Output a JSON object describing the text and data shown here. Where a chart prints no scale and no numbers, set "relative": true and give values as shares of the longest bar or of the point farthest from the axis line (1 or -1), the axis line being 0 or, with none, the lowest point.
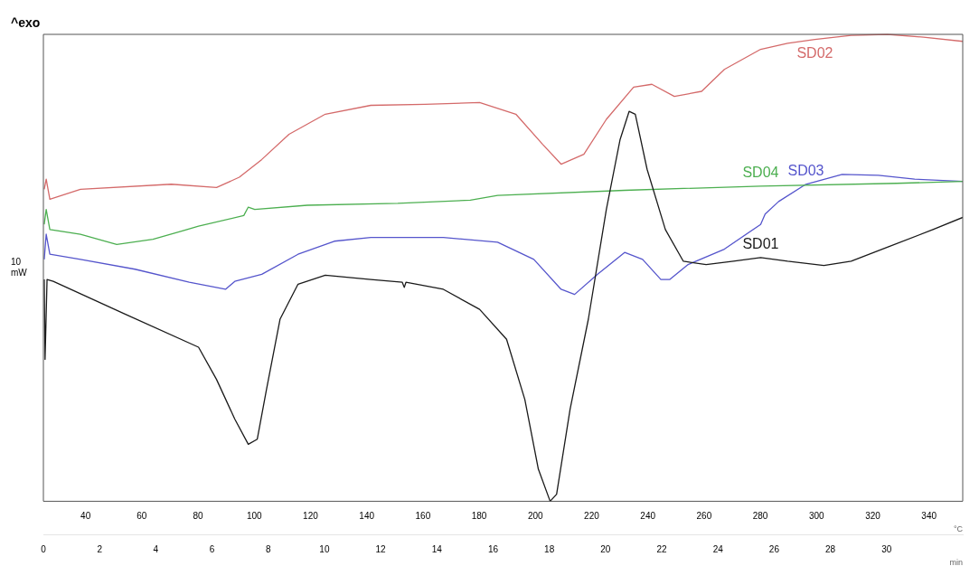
{
  "chart_data": {
    "type": "line",
    "relative": true,
    "xlabel": "min",
    "x2label": "°C",
    "xlim": [
      0,
      32.71
    ],
    "xticks": [
      0,
      2,
      4,
      6,
      8,
      10,
      12,
      14,
      16,
      18,
      20,
      22,
      24,
      26,
      28,
      30
    ],
    "x2lim": [
      25,
      352
    ],
    "x2ticks": [
      40,
      60,
      80,
      100,
      120,
      140,
      160,
      180,
      200,
      220,
      240,
      260,
      280,
      300,
      320,
      340
    ],
    "grid": false,
    "legend": false,
    "marker": "none",
    "line_style": "solid",
    "annotations": [
      "^exo",
      "10 mW"
    ],
    "series": [
      {
        "name": "SD01",
        "color": "#1a1a1a",
        "x": [
          0.03,
          0.06,
          0.13,
          0.35,
          2.94,
          5.52,
          6.16,
          6.81,
          7.29,
          7.61,
          7.94,
          8.42,
          9.06,
          10.03,
          11.65,
          12.77,
          12.84,
          12.9,
          14.23,
          15.52,
          16.48,
          17.13,
          17.61,
          18.03,
          18.26,
          18.74,
          19.39,
          20.03,
          20.52,
          20.84,
          21.06,
          21.48,
          22.13,
          22.77,
          23.58,
          24.55,
          25.52,
          26.48,
          27.77,
          28.74,
          30.03,
          31.65,
          32.71
        ],
        "values": [
          0.475,
          0.304,
          0.475,
          0.471,
          0.4,
          0.33,
          0.261,
          0.176,
          0.122,
          0.133,
          0.24,
          0.39,
          0.465,
          0.484,
          0.475,
          0.469,
          0.458,
          0.469,
          0.454,
          0.411,
          0.347,
          0.218,
          0.069,
          0,
          0.015,
          0.197,
          0.39,
          0.625,
          0.775,
          0.835,
          0.829,
          0.711,
          0.582,
          0.514,
          0.507,
          0.514,
          0.522,
          0.514,
          0.505,
          0.514,
          0.544,
          0.582,
          0.608
        ]
      },
      {
        "name": "SD02",
        "color": "#d46a6a",
        "x": [
          0.03,
          0.1,
          0.23,
          1.32,
          4.55,
          6.16,
          6.97,
          7.77,
          8.74,
          10.03,
          11.65,
          13.58,
          15.52,
          16.81,
          17.77,
          18.42,
          19.23,
          20.03,
          21.0,
          21.65,
          22.45,
          23.42,
          24.23,
          25.52,
          26.48,
          27.45,
          28.74,
          30.03,
          31.32,
          32.71
        ],
        "values": [
          0.668,
          0.69,
          0.647,
          0.668,
          0.679,
          0.672,
          0.694,
          0.732,
          0.786,
          0.829,
          0.848,
          0.85,
          0.854,
          0.829,
          0.764,
          0.722,
          0.743,
          0.818,
          0.887,
          0.893,
          0.867,
          0.878,
          0.925,
          0.968,
          0.981,
          0.989,
          0.998,
          1.0,
          0.994,
          0.985
        ]
      },
      {
        "name": "SD04",
        "color": "#4caf50",
        "x": [
          0.03,
          0.1,
          0.23,
          1.32,
          2.61,
          3.9,
          5.52,
          7.13,
          7.29,
          7.52,
          9.39,
          12.61,
          15.19,
          16.16,
          20.68,
          25.52,
          30.35,
          32.71
        ],
        "values": [
          0.593,
          0.625,
          0.582,
          0.572,
          0.55,
          0.561,
          0.589,
          0.612,
          0.63,
          0.625,
          0.634,
          0.638,
          0.645,
          0.655,
          0.666,
          0.675,
          0.681,
          0.685
        ]
      },
      {
        "name": "SD03",
        "color": "#5555cc",
        "x": [
          0.03,
          0.1,
          0.23,
          1.32,
          3.26,
          5.19,
          6.48,
          6.81,
          7.77,
          9.06,
          10.35,
          11.65,
          14.23,
          16.16,
          17.45,
          18.42,
          18.9,
          19.71,
          20.68,
          21.32,
          21.97,
          22.29,
          22.94,
          24.23,
          25.52,
          25.68,
          26.16,
          27.13,
          28.42,
          29.71,
          31.0,
          32.71
        ],
        "values": [
          0.518,
          0.572,
          0.529,
          0.518,
          0.497,
          0.469,
          0.454,
          0.471,
          0.486,
          0.529,
          0.557,
          0.565,
          0.565,
          0.555,
          0.518,
          0.454,
          0.443,
          0.486,
          0.533,
          0.518,
          0.475,
          0.475,
          0.507,
          0.54,
          0.593,
          0.615,
          0.642,
          0.679,
          0.7,
          0.698,
          0.69,
          0.685
        ]
      }
    ]
  }
}
